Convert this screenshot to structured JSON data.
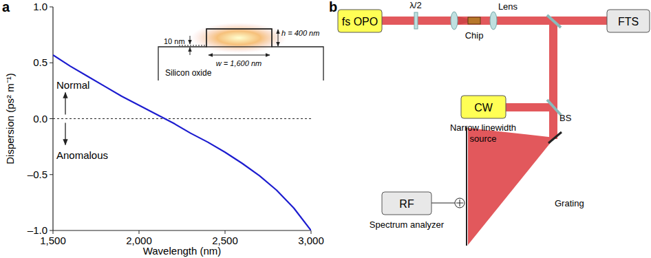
{
  "chart_data": {
    "type": "line",
    "x_label": "Wavelength (nm)",
    "y_label": "Dispersion (ps² m⁻¹)",
    "x": [
      1500,
      1600,
      1700,
      1800,
      1900,
      2000,
      2100,
      2200,
      2300,
      2400,
      2500,
      2600,
      2700,
      2800,
      2900,
      3000
    ],
    "values": [
      0.57,
      0.47,
      0.38,
      0.29,
      0.2,
      0.12,
      0.04,
      -0.04,
      -0.13,
      -0.21,
      -0.3,
      -0.4,
      -0.51,
      -0.64,
      -0.8,
      -1.0
    ],
    "color": "#1c1ccf",
    "xlim": [
      1500,
      3000
    ],
    "xticks": [
      {
        "value": 1500,
        "label": "1,500"
      },
      {
        "value": 2000,
        "label": "2,000"
      },
      {
        "value": 2500,
        "label": "2,500"
      },
      {
        "value": 3000,
        "label": "3,000"
      }
    ],
    "ylim": [
      -1.0,
      1.0
    ],
    "yticks": [
      {
        "value": -1.0,
        "label": "–1.0"
      },
      {
        "value": -0.5,
        "label": "–0.5"
      },
      {
        "value": 0.0,
        "label": "0.0"
      },
      {
        "value": 0.5,
        "label": "0.5"
      },
      {
        "value": 1.0,
        "label": "1.0"
      }
    ],
    "reference_line": 0,
    "annotations": {
      "panel": "a",
      "normal": "Normal",
      "anomalous": "Anomalous"
    },
    "inset": {
      "slab": "10 nm",
      "width": "w = 1,600 nm",
      "height": "h = 400 nm",
      "substrate": "Silicon oxide"
    }
  },
  "diagram": {
    "panel": "b",
    "boxes": {
      "fs_opo": "fs OPO",
      "fts": "FTS",
      "cw": "CW",
      "rf": "RF"
    },
    "labels": {
      "half_wave": "λ/2",
      "chip": "Chip",
      "lens": "Lens",
      "bs": "BS",
      "grating": "Grating",
      "cw_caption": [
        "Narrow linewidth",
        "source"
      ],
      "rf_caption": "Spectrum analyzer"
    }
  }
}
